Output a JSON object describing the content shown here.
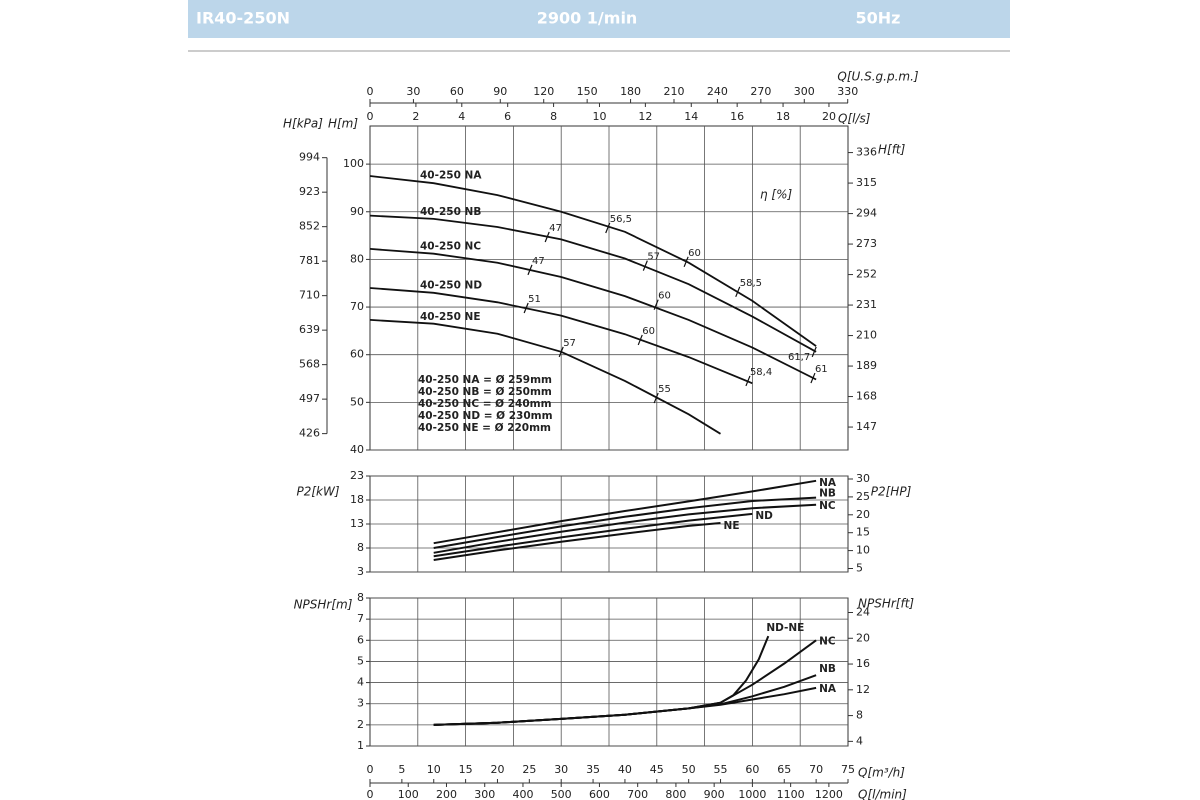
{
  "header": {
    "model": "IR40-250N",
    "speed": "2900 1/min",
    "frequency": "50Hz"
  },
  "chart_data": [
    {
      "type": "line",
      "xlim": [
        0,
        75
      ],
      "x2label": "Q[U.S.g.p.m.]",
      "x2lim": [
        0,
        330.2
      ],
      "x2ticks": [
        0,
        30,
        60,
        90,
        120,
        150,
        180,
        210,
        240,
        270,
        300,
        330
      ],
      "x3label": "Q[l/s]",
      "x3lim": [
        0,
        20.83
      ],
      "x3ticks": [
        0,
        2,
        4,
        6,
        8,
        10,
        12,
        14,
        16,
        18,
        20
      ],
      "ylabel": "H[m]",
      "ylim": [
        40,
        108
      ],
      "yticks": [
        40,
        50,
        60,
        70,
        80,
        90,
        100
      ],
      "y2label": "H[ft]",
      "y2lim": [
        131.2,
        354.3
      ],
      "y2ticks": [
        147,
        168,
        189,
        210,
        231,
        252,
        273,
        294,
        315,
        336
      ],
      "y3label": "H[kPa]",
      "y3lim": [
        392.3,
        1059.2
      ],
      "y3ticks": [
        426,
        497,
        568,
        639,
        710,
        781,
        852,
        923,
        994
      ],
      "grid": true,
      "series": [
        {
          "name": "40-250 NA",
          "color": "#111111",
          "x": [
            0,
            10,
            20,
            30,
            40,
            50,
            60,
            70
          ],
          "values": [
            97.5,
            96,
            93.5,
            90,
            85.8,
            79.3,
            71.3,
            61.8
          ]
        },
        {
          "name": "40-250 NB",
          "color": "#111111",
          "x": [
            0,
            10,
            20,
            30,
            40,
            50,
            60,
            70
          ],
          "values": [
            89.2,
            88.5,
            86.8,
            84.2,
            80.2,
            74.8,
            68,
            60.6
          ]
        },
        {
          "name": "40-250 NC",
          "color": "#111111",
          "x": [
            0,
            10,
            20,
            30,
            40,
            50,
            60,
            70
          ],
          "values": [
            82.2,
            81.2,
            79.3,
            76.3,
            72.3,
            67.3,
            61.5,
            54.8
          ]
        },
        {
          "name": "40-250 ND",
          "color": "#111111",
          "x": [
            0,
            10,
            20,
            30,
            40,
            50,
            60
          ],
          "values": [
            74,
            73,
            71,
            68.2,
            64.3,
            59.5,
            54
          ]
        },
        {
          "name": "40-250 NE",
          "color": "#111111",
          "x": [
            0,
            10,
            20,
            30,
            40,
            50,
            55
          ],
          "values": [
            67.3,
            66.5,
            64.4,
            60.6,
            54.5,
            47.5,
            43.4
          ]
        }
      ],
      "efficiency_label": "η [%]",
      "efficiency_marks": [
        {
          "text": "56,5",
          "q": 37.3,
          "h": 86.6
        },
        {
          "text": "60",
          "q": 49.6,
          "h": 79.5
        },
        {
          "text": "58,5",
          "q": 57.7,
          "h": 73.2
        },
        {
          "text": "47",
          "q": 27.8,
          "h": 84.7
        },
        {
          "text": "57",
          "q": 43.2,
          "h": 78.7
        },
        {
          "text": "61,7",
          "q": 69.7,
          "h": 60.6
        },
        {
          "text": "47",
          "q": 25.1,
          "h": 77.8
        },
        {
          "text": "60",
          "q": 44.9,
          "h": 70.5
        },
        {
          "text": "61",
          "q": 69.5,
          "h": 55.1
        },
        {
          "text": "51",
          "q": 24.5,
          "h": 69.8
        },
        {
          "text": "60",
          "q": 42.4,
          "h": 63.1
        },
        {
          "text": "58,4",
          "q": 59.3,
          "h": 54.5
        },
        {
          "text": "57",
          "q": 30,
          "h": 60.6
        },
        {
          "text": "55",
          "q": 44.9,
          "h": 50.9
        }
      ],
      "impeller_notes": [
        "40-250 NA = Ø 259mm",
        "40-250 NB = Ø 250mm",
        "40-250 NC = Ø 240mm",
        "40-250 ND = Ø 230mm",
        "40-250 NE = Ø 220mm"
      ]
    },
    {
      "type": "line",
      "xlim": [
        0,
        75
      ],
      "ylabel": "P2[kW]",
      "ylim": [
        3,
        23
      ],
      "yticks": [
        3,
        8,
        13,
        18,
        23
      ],
      "y2label": "P2[HP]",
      "y2lim": [
        4.02,
        30.84
      ],
      "y2ticks": [
        5,
        10,
        15,
        20,
        25,
        30
      ],
      "grid": true,
      "series": [
        {
          "name": "NA",
          "color": "#111111",
          "x": [
            10,
            20,
            30,
            40,
            50,
            60,
            70
          ],
          "values": [
            9,
            11.3,
            13.6,
            15.7,
            17.7,
            19.8,
            22
          ]
        },
        {
          "name": "NB",
          "color": "#111111",
          "x": [
            10,
            20,
            30,
            40,
            50,
            60,
            70
          ],
          "values": [
            8,
            10.3,
            12.5,
            14.5,
            16.3,
            17.8,
            18.5
          ]
        },
        {
          "name": "NC",
          "color": "#111111",
          "x": [
            10,
            20,
            30,
            40,
            50,
            60,
            70
          ],
          "values": [
            7,
            9.3,
            11.4,
            13.3,
            15,
            16.3,
            17
          ]
        },
        {
          "name": "ND",
          "color": "#111111",
          "x": [
            10,
            20,
            30,
            40,
            50,
            60
          ],
          "values": [
            6.3,
            8.3,
            10.2,
            12,
            13.7,
            15.1
          ]
        },
        {
          "name": "NE",
          "color": "#111111",
          "x": [
            10,
            20,
            30,
            40,
            50,
            55
          ],
          "values": [
            5.5,
            7.5,
            9.3,
            11,
            12.6,
            13.2
          ]
        }
      ]
    },
    {
      "type": "line",
      "xlabel": "Q[m³/h]",
      "xlim": [
        0,
        75
      ],
      "xticks": [
        0,
        5,
        10,
        15,
        20,
        25,
        30,
        35,
        40,
        45,
        50,
        55,
        60,
        65,
        70,
        75
      ],
      "x2label": "Q[l/min]",
      "x2lim": [
        0,
        1250
      ],
      "x2ticks": [
        0,
        100,
        200,
        300,
        400,
        500,
        600,
        700,
        800,
        900,
        1000,
        1100,
        1200
      ],
      "ylabel": "NPSHr[m]",
      "ylim": [
        1,
        8
      ],
      "yticks": [
        1,
        2,
        3,
        4,
        5,
        6,
        7,
        8
      ],
      "y2label": "NPSHr[ft]",
      "y2lim": [
        3.28,
        26.25
      ],
      "y2ticks": [
        4,
        8,
        12,
        16,
        20,
        24
      ],
      "grid": true,
      "series": [
        {
          "name": "NA",
          "color": "#111111",
          "x": [
            10,
            20,
            30,
            40,
            50,
            55,
            60,
            65,
            70
          ],
          "values": [
            2,
            2.1,
            2.28,
            2.48,
            2.78,
            2.95,
            3.2,
            3.45,
            3.75
          ]
        },
        {
          "name": "NB",
          "color": "#111111",
          "x": [
            10,
            20,
            30,
            40,
            50,
            55,
            60,
            65,
            70
          ],
          "values": [
            2,
            2.1,
            2.28,
            2.48,
            2.78,
            2.97,
            3.35,
            3.8,
            4.35
          ]
        },
        {
          "name": "NC",
          "color": "#111111",
          "x": [
            10,
            20,
            30,
            40,
            50,
            55,
            60,
            65,
            70
          ],
          "values": [
            2,
            2.1,
            2.28,
            2.48,
            2.78,
            3.05,
            3.9,
            4.9,
            6
          ]
        },
        {
          "name": "ND-NE",
          "color": "#111111",
          "x": [
            10,
            20,
            30,
            40,
            50,
            55,
            57,
            59,
            61,
            62.5
          ],
          "values": [
            2,
            2.1,
            2.28,
            2.48,
            2.78,
            3.05,
            3.4,
            4.1,
            5.1,
            6.2
          ]
        }
      ]
    }
  ]
}
